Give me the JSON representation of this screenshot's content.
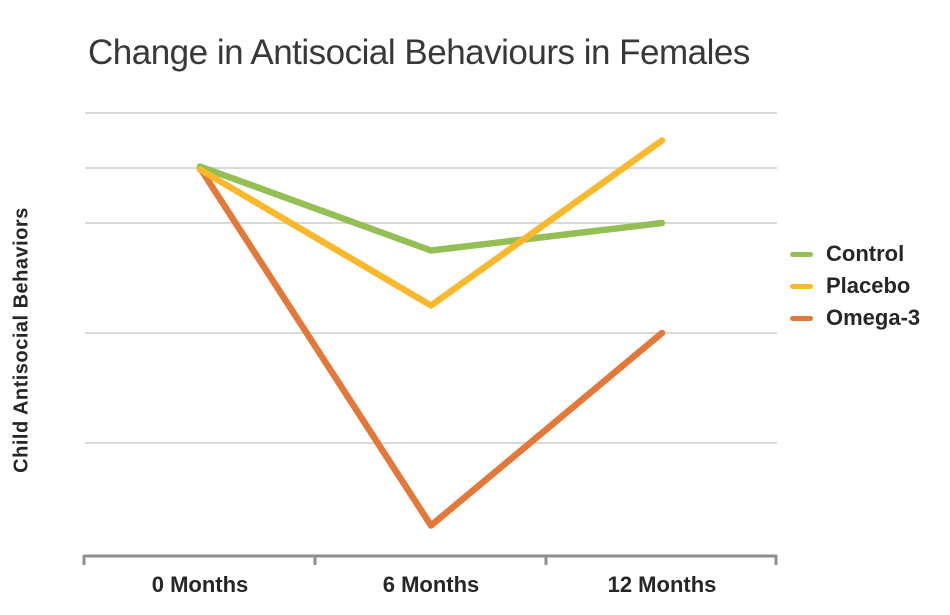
{
  "page": {
    "background_color": "#ffffff"
  },
  "chart_data": {
    "type": "line",
    "title": "Change in Antisocial Behaviours in Females",
    "ylabel": "Child Antisocial Behaviors",
    "xlabel": "",
    "categories": [
      "0 Months",
      "6 Months",
      "12 Months"
    ],
    "series": [
      {
        "name": "Control",
        "color": "#94BF54",
        "values": [
          7,
          5.5,
          6
        ]
      },
      {
        "name": "Placebo",
        "color": "#FAB82D",
        "values": [
          7,
          4.5,
          7.5
        ]
      },
      {
        "name": "Omega-3",
        "color": "#E2793A",
        "values": [
          7,
          0.5,
          4
        ]
      }
    ],
    "ylim": [
      0,
      8.25
    ],
    "y_gridline_values": [
      8,
      7,
      6,
      4,
      2
    ],
    "y_tick_labels": [],
    "grid": "horizontal gridlines only, no y-axis numeric labels, no vertical axis line",
    "legend_position": "right",
    "legend_marker": "line-segment",
    "colors": {
      "gridline": "#D9D9D9",
      "axis": "#8F8F8F",
      "title_text": "#383838",
      "label_text": "#262626"
    }
  }
}
